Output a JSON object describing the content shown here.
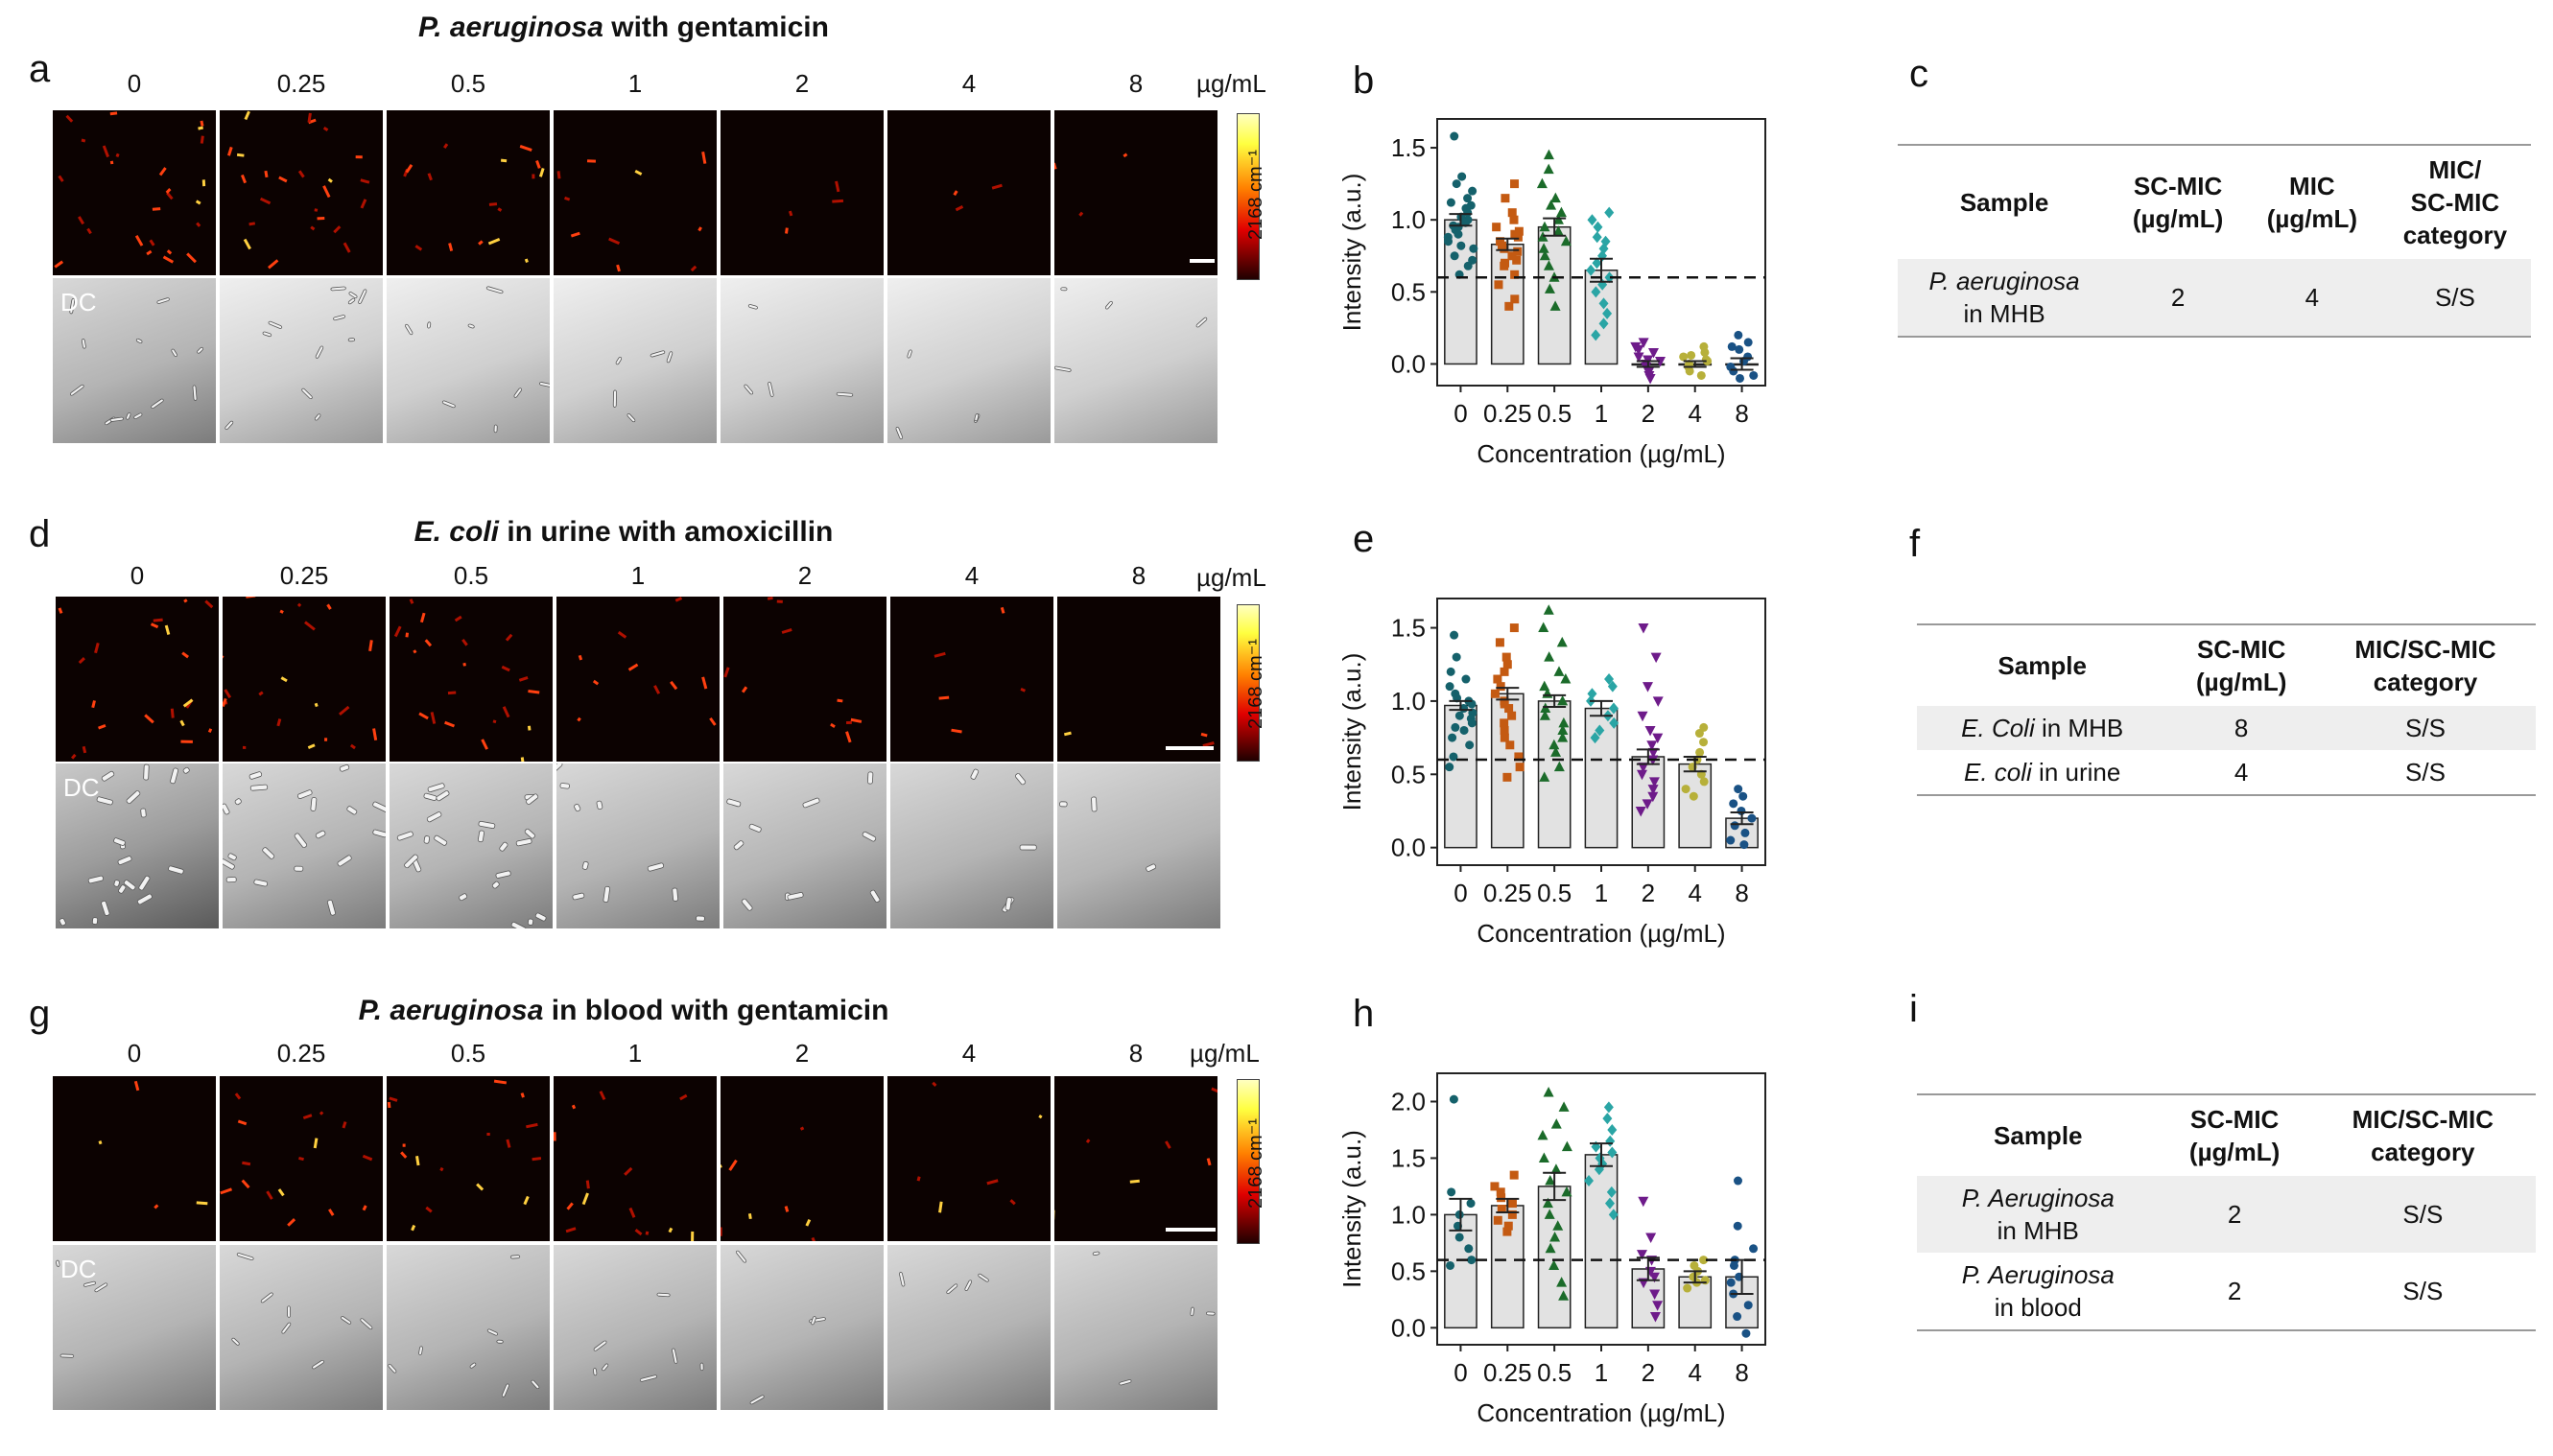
{
  "rows": [
    {
      "img_label": "a",
      "chart_label": "b",
      "table_label": "c",
      "title_italic": "P. aeruginosa",
      "title_rest": " with gentamicin",
      "concentrations": [
        "0",
        "0.25",
        "0.5",
        "1",
        "2",
        "4",
        "8"
      ],
      "unit": "µg/mL",
      "colorbar_label": "2168 cm⁻¹",
      "dc_label": "DC"
    },
    {
      "img_label": "d",
      "chart_label": "e",
      "table_label": "f",
      "title_italic": "E. coli",
      "title_rest": " in urine with amoxicillin",
      "concentrations": [
        "0",
        "0.25",
        "0.5",
        "1",
        "2",
        "4",
        "8"
      ],
      "unit": "µg/mL",
      "colorbar_label": "2168 cm⁻¹",
      "dc_label": "DC"
    },
    {
      "img_label": "g",
      "chart_label": "h",
      "table_label": "i",
      "title_italic": "P. aeruginosa",
      "title_rest": " in blood with gentamicin",
      "concentrations": [
        "0",
        "0.25",
        "0.5",
        "1",
        "2",
        "4",
        "8"
      ],
      "unit": "µg/mL",
      "colorbar_label": "2168 cm⁻¹",
      "dc_label": "DC"
    }
  ],
  "tables": [
    {
      "headers": [
        [
          "SC-MIC",
          "(µg/mL)"
        ],
        [
          "MIC",
          "(µg/mL)"
        ],
        [
          "MIC/",
          "SC-MIC",
          "category"
        ]
      ],
      "sample_header": "Sample",
      "rows": [
        {
          "sample_italic": "P. aeruginosa",
          "sample_rest": "in MHB",
          "values": [
            "2",
            "4",
            "S/S"
          ]
        }
      ]
    },
    {
      "headers": [
        [
          "SC-MIC",
          "(µg/mL)"
        ],
        [
          "MIC/SC-MIC",
          "category"
        ]
      ],
      "sample_header": "Sample",
      "rows": [
        {
          "sample_italic": "E. Coli",
          "sample_rest": " in MHB",
          "values": [
            "8",
            "S/S"
          ]
        },
        {
          "sample_italic": "E. coli",
          "sample_rest": " in urine",
          "values": [
            "4",
            "S/S"
          ]
        }
      ]
    },
    {
      "headers": [
        [
          "SC-MIC",
          "(µg/mL)"
        ],
        [
          "MIC/SC-MIC",
          "category"
        ]
      ],
      "sample_header": "Sample",
      "rows": [
        {
          "sample_italic": "P. Aeruginosa",
          "sample_rest": "in MHB",
          "values": [
            "2",
            "S/S"
          ]
        },
        {
          "sample_italic": "P. Aeruginosa",
          "sample_rest": "in blood",
          "values": [
            "2",
            "S/S"
          ]
        }
      ]
    }
  ],
  "chart_data": [
    {
      "type": "bar",
      "categories": [
        "0",
        "0.25",
        "0.5",
        "1",
        "2",
        "4",
        "8"
      ],
      "values": [
        1.0,
        0.83,
        0.95,
        0.65,
        0.0,
        0.0,
        0.0
      ],
      "errors": [
        0.04,
        0.04,
        0.06,
        0.08,
        0.02,
        0.02,
        0.04
      ],
      "threshold": 0.6,
      "ylabel": "Intensity (a.u.)",
      "xlabel": "Concentration (µg/mL)",
      "ylim": [
        -0.15,
        1.7
      ],
      "yticks": [
        "0.0",
        "0.5",
        "1.0",
        "1.5"
      ],
      "ytick_values": [
        0,
        0.5,
        1.0,
        1.5
      ],
      "point_colors": [
        "#15616b",
        "#c45a12",
        "#1b6b2a",
        "#2aa5a5",
        "#6e1b8a",
        "#b7b03a",
        "#1a5285"
      ],
      "point_markers": [
        "circle",
        "square",
        "triangle",
        "diamond",
        "tridown",
        "circle",
        "circle"
      ],
      "points": [
        [
          1.58,
          1.3,
          1.25,
          1.2,
          1.15,
          1.12,
          1.1,
          1.08,
          1.05,
          1.02,
          1.0,
          0.98,
          0.96,
          0.95,
          0.93,
          0.9,
          0.88,
          0.85,
          0.82,
          0.8,
          0.75,
          0.72,
          0.68,
          0.62
        ],
        [
          1.25,
          1.15,
          1.05,
          1.0,
          0.95,
          0.92,
          0.9,
          0.88,
          0.85,
          0.82,
          0.8,
          0.78,
          0.75,
          0.72,
          0.7,
          0.68,
          0.62,
          0.55,
          0.45,
          0.4
        ],
        [
          1.45,
          1.35,
          1.25,
          1.15,
          1.1,
          1.05,
          1.0,
          0.95,
          0.92,
          0.88,
          0.85,
          0.8,
          0.75,
          0.68,
          0.6,
          0.52,
          0.4
        ],
        [
          1.05,
          1.0,
          0.95,
          0.88,
          0.85,
          0.8,
          0.75,
          0.7,
          0.65,
          0.6,
          0.55,
          0.5,
          0.42,
          0.35,
          0.28,
          0.2
        ],
        [
          0.15,
          0.12,
          0.08,
          0.05,
          0.02,
          0.0,
          -0.02,
          -0.05,
          -0.08,
          -0.1,
          0.1,
          0.03
        ],
        [
          0.12,
          0.08,
          0.05,
          0.03,
          0.0,
          -0.02,
          -0.05,
          -0.08,
          0.02,
          0.06
        ],
        [
          0.2,
          0.15,
          0.1,
          0.05,
          0.02,
          -0.02,
          -0.05,
          -0.08,
          -0.1,
          0.12
        ]
      ]
    },
    {
      "type": "bar",
      "categories": [
        "0",
        "0.25",
        "0.5",
        "1",
        "2",
        "4",
        "8"
      ],
      "values": [
        0.97,
        1.05,
        1.0,
        0.95,
        0.62,
        0.57,
        0.2
      ],
      "errors": [
        0.03,
        0.04,
        0.04,
        0.05,
        0.05,
        0.05,
        0.04
      ],
      "threshold": 0.6,
      "ylabel": "Intensity (a.u.)",
      "xlabel": "Concentration (µg/mL)",
      "ylim": [
        -0.12,
        1.7
      ],
      "yticks": [
        "0.0",
        "0.5",
        "1.0",
        "1.5"
      ],
      "ytick_values": [
        0,
        0.5,
        1.0,
        1.5
      ],
      "point_colors": [
        "#15616b",
        "#c45a12",
        "#1b6b2a",
        "#2aa5a5",
        "#6e1b8a",
        "#b7b03a",
        "#1a5285"
      ],
      "point_markers": [
        "circle",
        "square",
        "triangle",
        "diamond",
        "tridown",
        "circle",
        "circle"
      ],
      "points": [
        [
          1.45,
          1.3,
          1.2,
          1.15,
          1.1,
          1.05,
          1.02,
          1.0,
          0.98,
          0.95,
          0.92,
          0.9,
          0.88,
          0.85,
          0.82,
          0.8,
          0.75,
          0.7,
          0.62,
          0.55
        ],
        [
          1.5,
          1.4,
          1.3,
          1.25,
          1.2,
          1.15,
          1.1,
          1.05,
          1.0,
          0.98,
          0.95,
          0.9,
          0.85,
          0.8,
          0.75,
          0.7,
          0.62,
          0.55,
          0.48
        ],
        [
          1.62,
          1.5,
          1.4,
          1.3,
          1.2,
          1.15,
          1.1,
          1.05,
          1.0,
          0.95,
          0.9,
          0.85,
          0.8,
          0.75,
          0.7,
          0.65,
          0.55,
          0.48
        ],
        [
          1.15,
          1.1,
          1.05,
          1.0,
          0.95,
          0.9,
          0.85,
          0.8,
          0.75
        ],
        [
          1.5,
          1.3,
          1.1,
          1.0,
          0.9,
          0.8,
          0.75,
          0.7,
          0.65,
          0.6,
          0.55,
          0.5,
          0.45,
          0.4,
          0.35,
          0.3,
          0.25
        ],
        [
          0.82,
          0.78,
          0.72,
          0.65,
          0.6,
          0.55,
          0.5,
          0.45,
          0.4,
          0.35
        ],
        [
          0.4,
          0.35,
          0.3,
          0.25,
          0.2,
          0.15,
          0.1,
          0.05,
          0.02
        ]
      ]
    },
    {
      "type": "bar",
      "categories": [
        "0",
        "0.25",
        "0.5",
        "1",
        "2",
        "4",
        "8"
      ],
      "values": [
        1.0,
        1.08,
        1.25,
        1.53,
        0.52,
        0.45,
        0.45
      ],
      "errors": [
        0.14,
        0.06,
        0.12,
        0.1,
        0.1,
        0.05,
        0.15
      ],
      "threshold": 0.6,
      "ylabel": "Intensity (a.u.)",
      "xlabel": "Concentration (µg/mL)",
      "ylim": [
        -0.15,
        2.25
      ],
      "yticks": [
        "0.0",
        "0.5",
        "1.0",
        "1.5",
        "2.0"
      ],
      "ytick_values": [
        0,
        0.5,
        1.0,
        1.5,
        2.0
      ],
      "point_colors": [
        "#15616b",
        "#c45a12",
        "#1b6b2a",
        "#2aa5a5",
        "#6e1b8a",
        "#b7b03a",
        "#1a5285"
      ],
      "point_markers": [
        "circle",
        "square",
        "triangle",
        "diamond",
        "tridown",
        "circle",
        "circle"
      ],
      "points": [
        [
          2.02,
          1.2,
          1.1,
          1.0,
          0.9,
          0.8,
          0.7,
          0.6,
          0.55
        ],
        [
          1.35,
          1.25,
          1.2,
          1.15,
          1.1,
          1.05,
          1.0,
          0.95,
          0.9,
          0.85
        ],
        [
          2.08,
          1.95,
          1.8,
          1.7,
          1.6,
          1.5,
          1.4,
          1.3,
          1.2,
          1.1,
          1.0,
          0.9,
          0.8,
          0.7,
          0.55,
          0.4,
          0.28
        ],
        [
          1.95,
          1.85,
          1.75,
          1.65,
          1.6,
          1.55,
          1.5,
          1.45,
          1.4,
          1.3,
          1.2,
          1.1,
          1.0
        ],
        [
          1.12,
          0.8,
          0.65,
          0.6,
          0.5,
          0.45,
          0.4,
          0.3,
          0.2,
          0.1
        ],
        [
          0.6,
          0.55,
          0.5,
          0.45,
          0.42,
          0.4,
          0.35
        ],
        [
          1.3,
          0.9,
          0.7,
          0.6,
          0.55,
          0.45,
          0.4,
          0.3,
          0.2,
          0.1,
          -0.05
        ]
      ]
    }
  ]
}
